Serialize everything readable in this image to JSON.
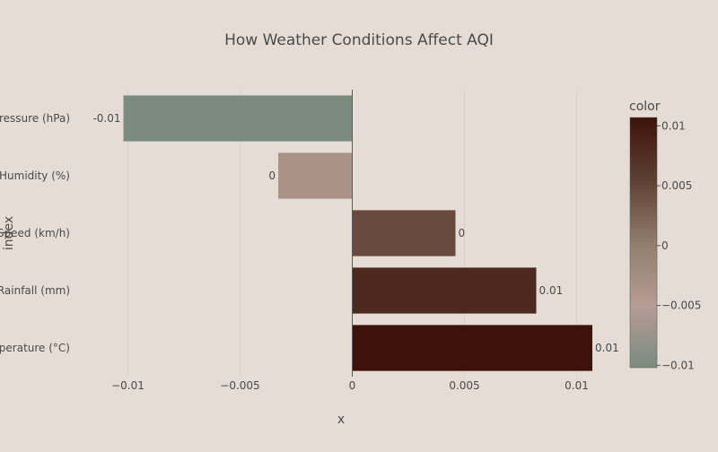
{
  "chart_data": {
    "type": "bar",
    "orientation": "horizontal",
    "title": "How Weather Conditions Affect AQI",
    "xlabel": "x",
    "ylabel": "index",
    "categories": [
      "Pressure (hPa)",
      "Humidity (%)",
      "Wind Speed (km/h)",
      "Rainfall (mm)",
      "Temperature (°C)"
    ],
    "values": [
      -0.0102,
      -0.0033,
      0.0046,
      0.0082,
      0.0107
    ],
    "data_labels": [
      "-0.01",
      "0",
      "0",
      "0.01",
      "0.01"
    ],
    "xlim": [
      -0.0125,
      0.0115
    ],
    "x_ticks": [
      -0.01,
      -0.005,
      0,
      0.005,
      0.01
    ],
    "x_tick_labels": [
      "−0.01",
      "−0.005",
      "0",
      "0.005",
      "0.01"
    ],
    "grid": true,
    "colorbar": {
      "title": "color",
      "range": [
        -0.0102,
        0.0107
      ],
      "ticks": [
        0.01,
        0.005,
        0,
        -0.005,
        -0.01
      ],
      "tick_labels": [
        "0.01",
        "0.005",
        "0",
        "−0.005",
        "−0.01"
      ],
      "colors": [
        "#7b8b80",
        "#b69c94",
        "#917d6d",
        "#5e4033",
        "#3d120b"
      ]
    },
    "colors": {
      "background": "#e5dcd6",
      "grid": "#d8cfc7",
      "zero_line": "#5a5a5a"
    }
  }
}
